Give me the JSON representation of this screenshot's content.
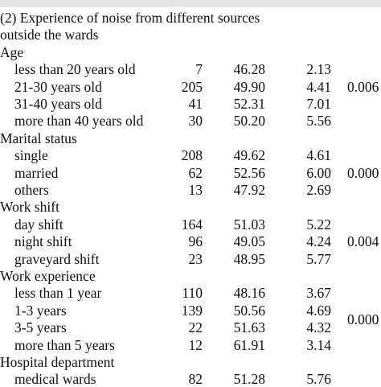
{
  "table": {
    "title": [
      "(2) Experience of noise from different sources",
      "outside the wards"
    ],
    "groups": [
      {
        "label": "Age",
        "p": "0.006",
        "rows": [
          [
            "less than 20 years old",
            "7",
            "46.28",
            "2.13"
          ],
          [
            "21-30 years old",
            "205",
            "49.90",
            "4.41"
          ],
          [
            "31-40 years old",
            "41",
            "52.31",
            "7.01"
          ],
          [
            "more than 40 years old",
            "30",
            "50.20",
            "5.56"
          ]
        ]
      },
      {
        "label": "Marital status",
        "p": "0.000",
        "rows": [
          [
            "single",
            "208",
            "49.62",
            "4.61"
          ],
          [
            "married",
            "62",
            "52.56",
            "6.00"
          ],
          [
            "others",
            "13",
            "47.92",
            "2.69"
          ]
        ]
      },
      {
        "label": "Work shift",
        "p": "0.004",
        "rows": [
          [
            "day shift",
            "164",
            "51.03",
            "5.22"
          ],
          [
            "night shift",
            "96",
            "49.05",
            "4.24"
          ],
          [
            "graveyard shift",
            "23",
            "48.95",
            "5.77"
          ]
        ]
      },
      {
        "label": "Work experience",
        "p": "0.000",
        "rows": [
          [
            "less than 1 year",
            "110",
            "48.16",
            "3.67"
          ],
          [
            "1-3 years",
            "139",
            "50.56",
            "4.69"
          ],
          [
            "3-5 years",
            "22",
            "51.63",
            "4.32"
          ],
          [
            "more than 5 years",
            "12",
            "61.91",
            "3.14"
          ]
        ]
      },
      {
        "label": "Hospital department",
        "rows": [
          [
            "medical wards",
            "82",
            "51.28",
            "5.76"
          ]
        ]
      }
    ]
  }
}
